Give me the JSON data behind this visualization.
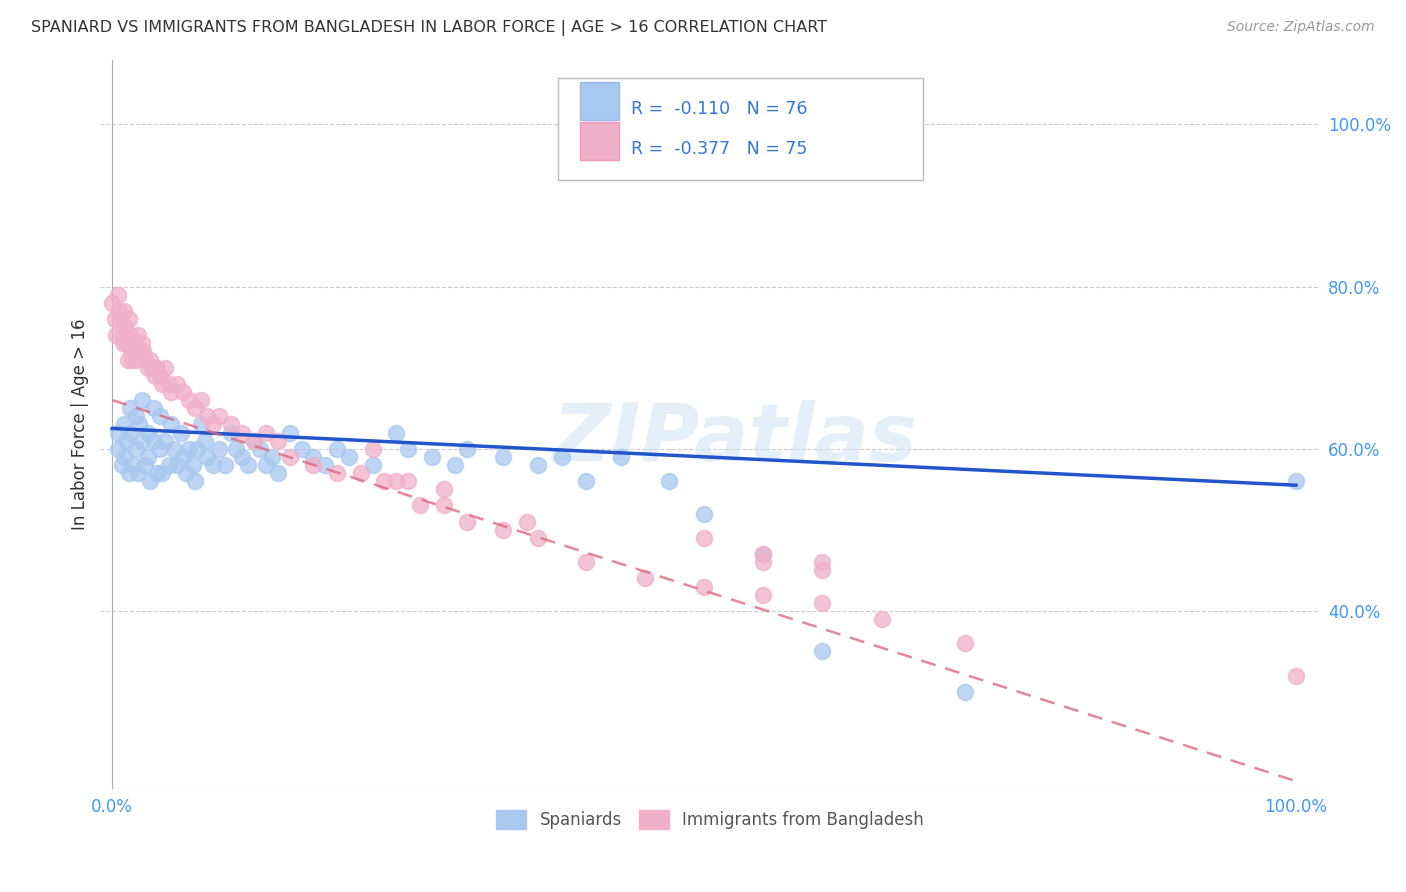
{
  "title": "SPANIARD VS IMMIGRANTS FROM BANGLADESH IN LABOR FORCE | AGE > 16 CORRELATION CHART",
  "source_text": "Source: ZipAtlas.com",
  "ylabel": "In Labor Force | Age > 16",
  "xlim": [
    -0.01,
    1.02
  ],
  "ylim": [
    0.18,
    1.08
  ],
  "ytick_positions": [
    0.4,
    0.6,
    0.8,
    1.0
  ],
  "ytick_labels": [
    "40.0%",
    "60.0%",
    "80.0%",
    "100.0%"
  ],
  "xtick_positions": [
    0.0,
    1.0
  ],
  "xtick_labels": [
    "0.0%",
    "100.0%"
  ],
  "grid_color": "#cccccc",
  "background_color": "#ffffff",
  "spaniard_color": "#a8c8f0",
  "bangladesh_color": "#f0b0c8",
  "trend_spaniard_color": "#2255cc",
  "trend_bangladesh_color": "#e06880",
  "watermark": "ZIPatlas",
  "legend_label1": "Spaniards",
  "legend_label2": "Immigrants from Bangladesh",
  "spaniard_x": [
    0.005,
    0.005,
    0.008,
    0.01,
    0.01,
    0.012,
    0.014,
    0.015,
    0.015,
    0.018,
    0.02,
    0.02,
    0.022,
    0.023,
    0.025,
    0.025,
    0.028,
    0.03,
    0.03,
    0.032,
    0.035,
    0.035,
    0.038,
    0.04,
    0.04,
    0.042,
    0.045,
    0.048,
    0.05,
    0.052,
    0.055,
    0.058,
    0.06,
    0.062,
    0.065,
    0.068,
    0.07,
    0.072,
    0.075,
    0.078,
    0.08,
    0.085,
    0.09,
    0.095,
    0.1,
    0.105,
    0.11,
    0.115,
    0.12,
    0.125,
    0.13,
    0.135,
    0.14,
    0.15,
    0.16,
    0.17,
    0.18,
    0.19,
    0.2,
    0.22,
    0.24,
    0.25,
    0.27,
    0.29,
    0.3,
    0.33,
    0.36,
    0.38,
    0.4,
    0.43,
    0.47,
    0.5,
    0.55,
    0.6,
    0.72,
    1.0
  ],
  "spaniard_y": [
    0.62,
    0.6,
    0.58,
    0.63,
    0.59,
    0.61,
    0.57,
    0.65,
    0.62,
    0.58,
    0.64,
    0.6,
    0.57,
    0.63,
    0.66,
    0.61,
    0.58,
    0.62,
    0.59,
    0.56,
    0.65,
    0.61,
    0.57,
    0.64,
    0.6,
    0.57,
    0.61,
    0.58,
    0.63,
    0.6,
    0.58,
    0.62,
    0.59,
    0.57,
    0.6,
    0.58,
    0.56,
    0.6,
    0.63,
    0.61,
    0.59,
    0.58,
    0.6,
    0.58,
    0.62,
    0.6,
    0.59,
    0.58,
    0.61,
    0.6,
    0.58,
    0.59,
    0.57,
    0.62,
    0.6,
    0.59,
    0.58,
    0.6,
    0.59,
    0.58,
    0.62,
    0.6,
    0.59,
    0.58,
    0.6,
    0.59,
    0.58,
    0.59,
    0.56,
    0.59,
    0.56,
    0.52,
    0.47,
    0.35,
    0.3,
    0.56
  ],
  "bangladesh_x": [
    0.0,
    0.002,
    0.003,
    0.005,
    0.006,
    0.007,
    0.008,
    0.009,
    0.01,
    0.011,
    0.012,
    0.013,
    0.014,
    0.015,
    0.016,
    0.017,
    0.018,
    0.019,
    0.02,
    0.022,
    0.024,
    0.025,
    0.026,
    0.028,
    0.03,
    0.032,
    0.034,
    0.036,
    0.038,
    0.04,
    0.042,
    0.045,
    0.048,
    0.05,
    0.055,
    0.06,
    0.065,
    0.07,
    0.075,
    0.08,
    0.085,
    0.09,
    0.1,
    0.11,
    0.12,
    0.13,
    0.14,
    0.15,
    0.17,
    0.19,
    0.21,
    0.23,
    0.25,
    0.28,
    0.35,
    0.5,
    0.55,
    0.55,
    0.6,
    0.6,
    0.22,
    0.24,
    0.26,
    0.28,
    0.3,
    0.33,
    0.36,
    0.4,
    0.45,
    0.5,
    0.55,
    0.6,
    0.65,
    0.72,
    1.0
  ],
  "bangladesh_y": [
    0.78,
    0.76,
    0.74,
    0.79,
    0.77,
    0.76,
    0.74,
    0.73,
    0.77,
    0.75,
    0.73,
    0.71,
    0.76,
    0.74,
    0.72,
    0.71,
    0.73,
    0.72,
    0.71,
    0.74,
    0.72,
    0.73,
    0.72,
    0.71,
    0.7,
    0.71,
    0.7,
    0.69,
    0.7,
    0.69,
    0.68,
    0.7,
    0.68,
    0.67,
    0.68,
    0.67,
    0.66,
    0.65,
    0.66,
    0.64,
    0.63,
    0.64,
    0.63,
    0.62,
    0.61,
    0.62,
    0.61,
    0.59,
    0.58,
    0.57,
    0.57,
    0.56,
    0.56,
    0.55,
    0.51,
    0.49,
    0.47,
    0.46,
    0.46,
    0.45,
    0.6,
    0.56,
    0.53,
    0.53,
    0.51,
    0.5,
    0.49,
    0.46,
    0.44,
    0.43,
    0.42,
    0.41,
    0.39,
    0.36,
    0.32
  ]
}
